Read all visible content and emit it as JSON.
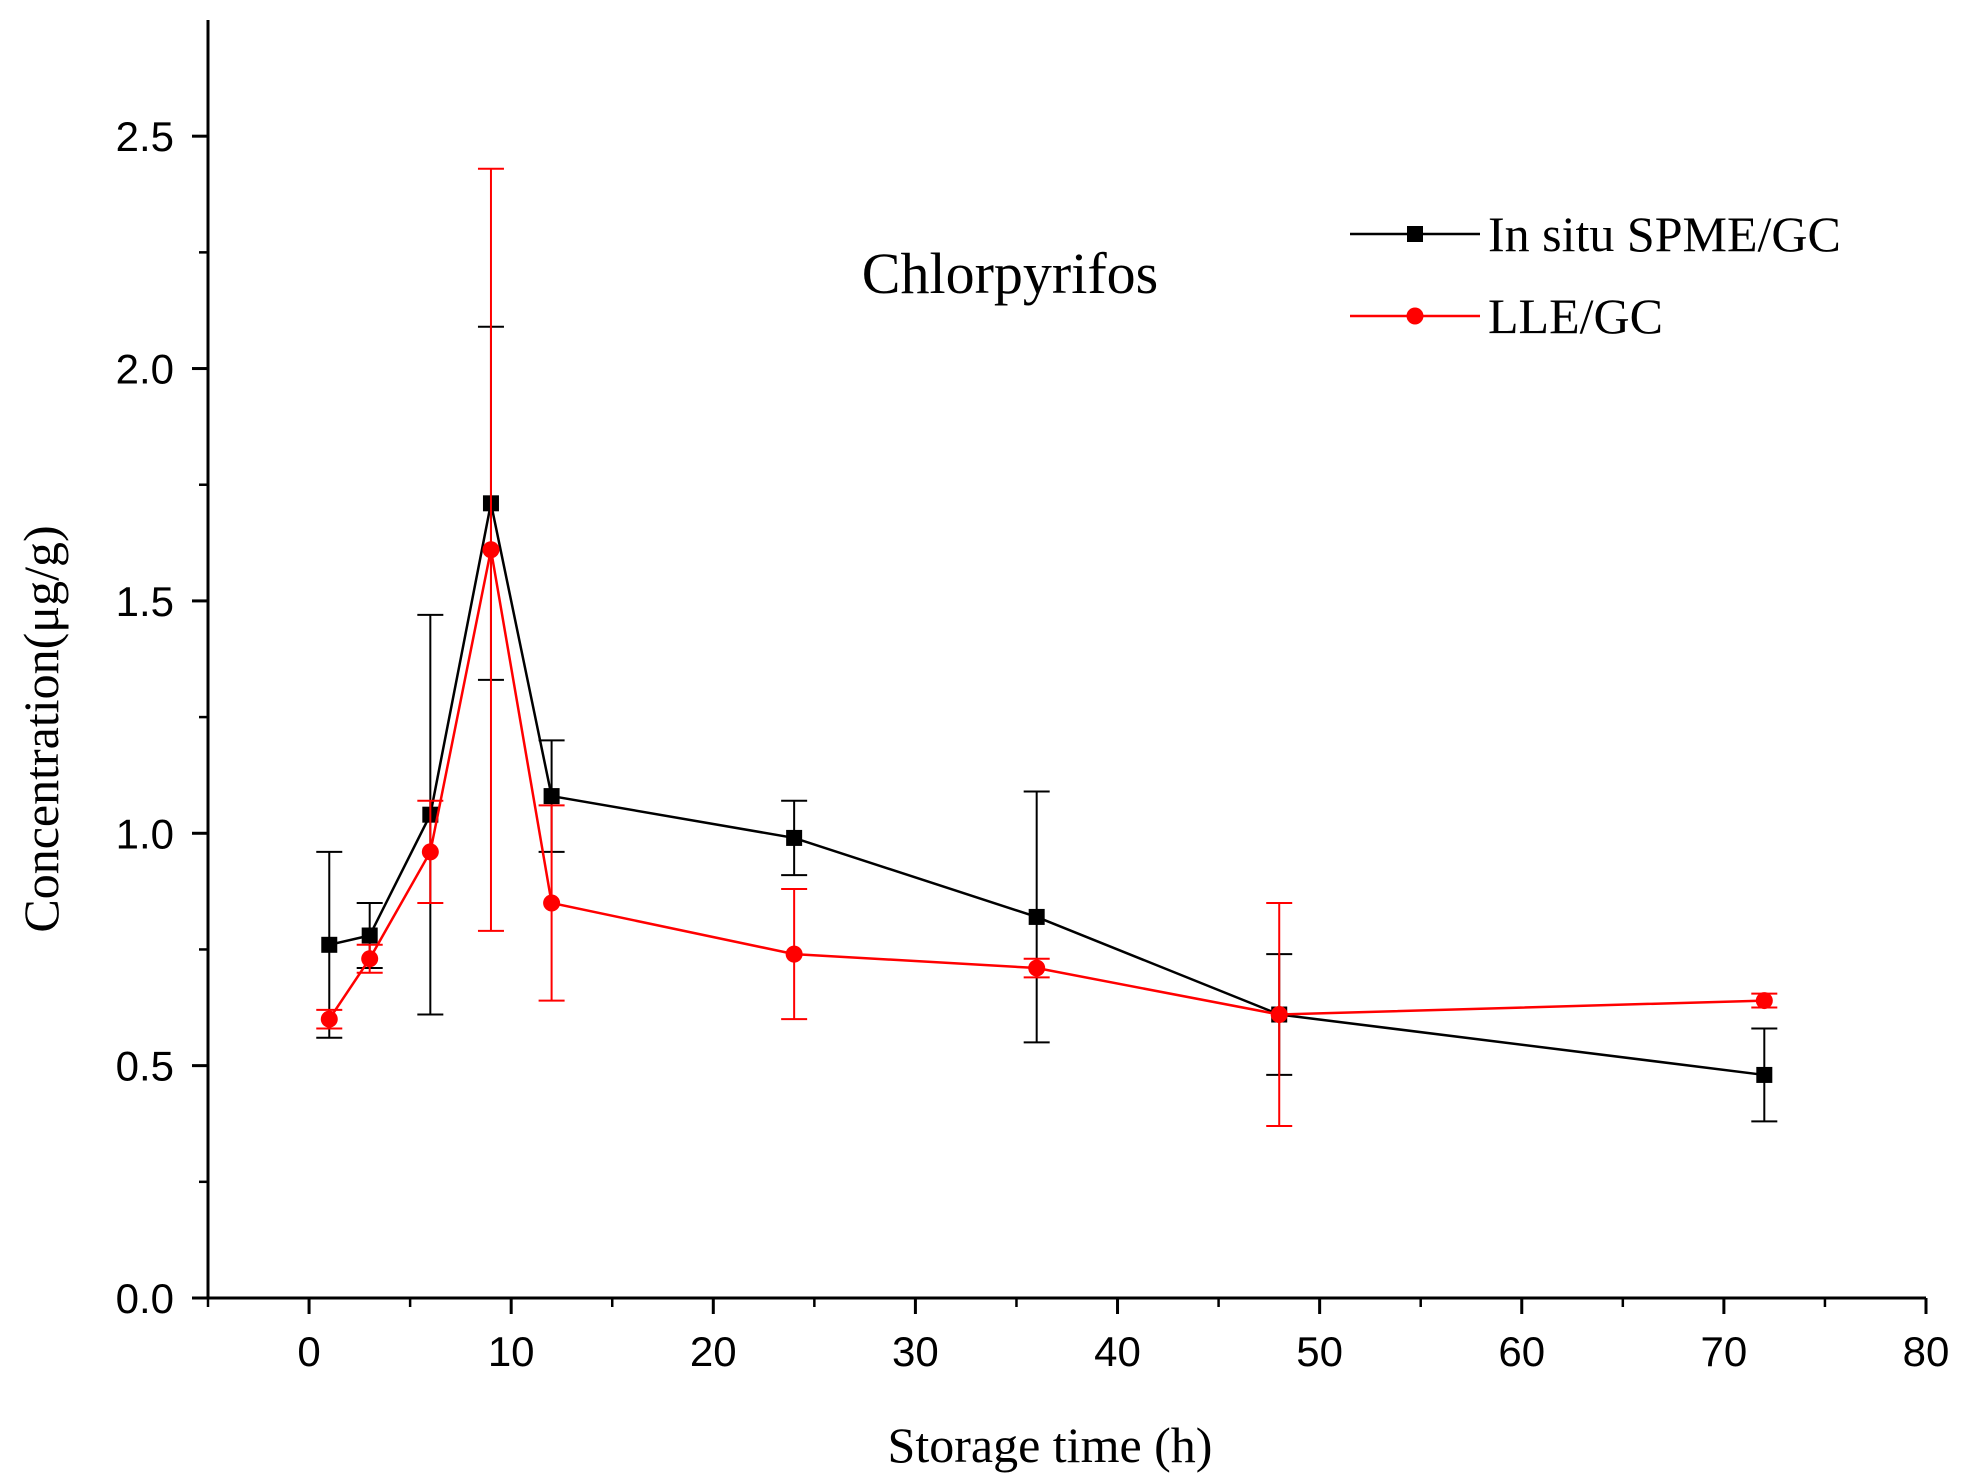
{
  "chart_data": {
    "type": "line",
    "title": "",
    "annotation": "Chlorpyrifos",
    "xlabel": "Storage time (h)",
    "ylabel": "Concentration(μg/g)",
    "xlim": [
      -5,
      80
    ],
    "ylim": [
      0,
      2.75
    ],
    "xticks": [
      0,
      10,
      20,
      30,
      40,
      50,
      60,
      70,
      80
    ],
    "xtick_labels": [
      "0",
      "10",
      "20",
      "30",
      "40",
      "50",
      "60",
      "70",
      "80"
    ],
    "xminor": [
      -5,
      5,
      15,
      25,
      35,
      45,
      55,
      65,
      75
    ],
    "yticks": [
      0,
      0.5,
      1.0,
      1.5,
      2.0,
      2.5
    ],
    "ytick_labels": [
      "0.0",
      "0.5",
      "1.0",
      "1.5",
      "2.0",
      "2.5"
    ],
    "yminor": [
      0.25,
      0.75,
      1.25,
      1.75,
      2.25
    ],
    "grid": false,
    "legend_position": "top-right",
    "series": [
      {
        "name": "In situ SPME/GC",
        "color": "#000000",
        "marker": "square",
        "x": [
          1,
          3,
          6,
          9,
          12,
          24,
          36,
          48,
          72
        ],
        "y": [
          0.76,
          0.78,
          1.04,
          1.71,
          1.08,
          0.99,
          0.82,
          0.61,
          0.48
        ],
        "error": [
          0.2,
          0.07,
          0.43,
          0.38,
          0.12,
          0.08,
          0.27,
          0.13,
          0.1
        ]
      },
      {
        "name": "LLE/GC",
        "color": "#ff0000",
        "marker": "circle",
        "x": [
          1,
          3,
          6,
          9,
          12,
          24,
          36,
          48,
          72
        ],
        "y": [
          0.6,
          0.73,
          0.96,
          1.61,
          0.85,
          0.74,
          0.71,
          0.61,
          0.64
        ],
        "error": [
          0.02,
          0.03,
          0.11,
          0.82,
          0.21,
          0.14,
          0.02,
          0.24,
          0.015
        ]
      }
    ]
  }
}
